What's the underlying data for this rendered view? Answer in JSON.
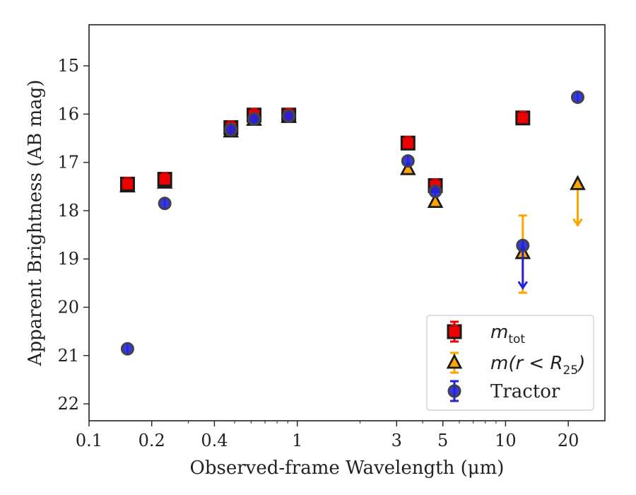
{
  "chart_data": {
    "type": "scatter",
    "xlabel": "Observed-frame Wavelength (μm)",
    "ylabel": "Apparent Brightness (AB mag)",
    "x_scale": "log",
    "xlim": [
      0.1,
      30
    ],
    "ylim": [
      22.35,
      14.15
    ],
    "y_inverted": true,
    "grid": false,
    "legend_position": "bottom-right",
    "x_ticks": [
      {
        "value": 0.1,
        "label": "0.1"
      },
      {
        "value": 0.2,
        "label": "0.2"
      },
      {
        "value": 0.4,
        "label": "0.4"
      },
      {
        "value": 1,
        "label": "1"
      },
      {
        "value": 3,
        "label": "3"
      },
      {
        "value": 5,
        "label": "5"
      },
      {
        "value": 10,
        "label": "10"
      },
      {
        "value": 20,
        "label": "20"
      }
    ],
    "y_ticks": [
      {
        "value": 15,
        "label": "15"
      },
      {
        "value": 16,
        "label": "16"
      },
      {
        "value": 17,
        "label": "17"
      },
      {
        "value": 18,
        "label": "18"
      },
      {
        "value": 19,
        "label": "19"
      },
      {
        "value": 20,
        "label": "20"
      },
      {
        "value": 21,
        "label": "21"
      },
      {
        "value": 22,
        "label": "22"
      }
    ],
    "series": [
      {
        "name": "m_tot",
        "legend_label": "m",
        "legend_subscript": "tot",
        "marker": "square",
        "color": "#ee0000",
        "points": [
          {
            "x": 0.153,
            "y": 17.45
          },
          {
            "x": 0.231,
            "y": 17.35
          },
          {
            "x": 0.48,
            "y": 16.28
          },
          {
            "x": 0.62,
            "y": 16.02
          },
          {
            "x": 0.91,
            "y": 16.02
          },
          {
            "x": 3.4,
            "y": 16.6
          },
          {
            "x": 4.6,
            "y": 17.48
          },
          {
            "x": 12.1,
            "y": 16.08
          }
        ]
      },
      {
        "name": "m(r < R_25)",
        "legend_label": "m(r < R",
        "legend_subscript": "25",
        "legend_suffix": ")",
        "marker": "triangle",
        "color": "#ffa500",
        "points": [
          {
            "x": 0.153,
            "y": 17.5
          },
          {
            "x": 0.231,
            "y": 17.42
          },
          {
            "x": 0.48,
            "y": 16.36
          },
          {
            "x": 0.62,
            "y": 16.12
          },
          {
            "x": 0.91,
            "y": 16.06
          },
          {
            "x": 3.4,
            "y": 17.14
          },
          {
            "x": 4.6,
            "y": 17.82
          },
          {
            "x": 12.1,
            "y": 18.88,
            "yerr_low": 18.1,
            "yerr_high": 19.7
          },
          {
            "x": 22.2,
            "y": 17.45,
            "upper_limit_to": 18.3
          }
        ]
      },
      {
        "name": "Tractor",
        "legend_label": "Tractor",
        "marker": "circle",
        "color": "#2222dd",
        "points": [
          {
            "x": 0.153,
            "y": 20.86
          },
          {
            "x": 0.231,
            "y": 17.85
          },
          {
            "x": 0.48,
            "y": 16.32
          },
          {
            "x": 0.62,
            "y": 16.1
          },
          {
            "x": 0.91,
            "y": 16.04
          },
          {
            "x": 3.4,
            "y": 16.97
          },
          {
            "x": 4.6,
            "y": 17.6
          },
          {
            "x": 12.1,
            "y": 18.72,
            "upper_limit_to": 19.6
          },
          {
            "x": 22.2,
            "y": 15.65
          }
        ]
      }
    ]
  }
}
